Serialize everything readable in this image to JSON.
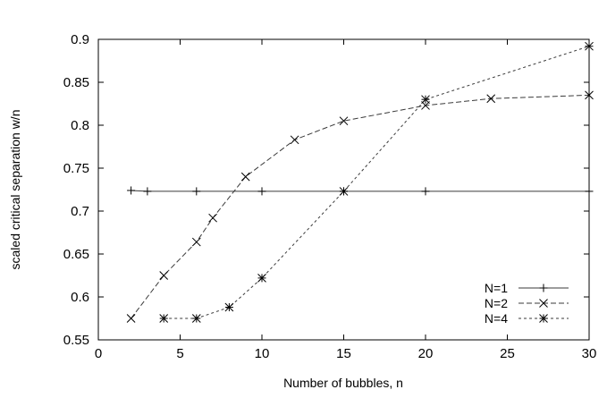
{
  "chart_data": {
    "type": "line",
    "xlabel": "Number of bubbles, n",
    "ylabel": "scaled critical separation w/n",
    "xlim": [
      0,
      30
    ],
    "ylim": [
      0.55,
      0.9
    ],
    "xticks": [
      0,
      5,
      10,
      15,
      20,
      25,
      30
    ],
    "yticks": [
      0.55,
      0.6,
      0.65,
      0.7,
      0.75,
      0.8,
      0.85,
      0.9
    ],
    "xtick_labels": [
      "0",
      "5",
      "10",
      "15",
      "20",
      "25",
      "30"
    ],
    "ytick_labels": [
      "0.55",
      "0.6",
      "0.65",
      "0.7",
      "0.75",
      "0.8",
      "0.85",
      "0.9"
    ],
    "grid": false,
    "legend_position": "bottom-right",
    "series": [
      {
        "name": "N=1",
        "marker": "plus",
        "line": "solid",
        "x": [
          2,
          3,
          6,
          10,
          15,
          20,
          30
        ],
        "y": [
          0.724,
          0.723,
          0.723,
          0.723,
          0.723,
          0.723,
          0.723
        ]
      },
      {
        "name": "N=2",
        "marker": "cross",
        "line": "dashed",
        "x": [
          2,
          4,
          6,
          7,
          9,
          12,
          15,
          20,
          24,
          30
        ],
        "y": [
          0.575,
          0.625,
          0.664,
          0.692,
          0.74,
          0.783,
          0.805,
          0.823,
          0.831,
          0.835
        ]
      },
      {
        "name": "N=4",
        "marker": "star",
        "line": "dotted",
        "x": [
          4,
          6,
          8,
          10,
          15,
          20,
          30
        ],
        "y": [
          0.575,
          0.575,
          0.588,
          0.622,
          0.723,
          0.83,
          0.892
        ]
      }
    ]
  }
}
